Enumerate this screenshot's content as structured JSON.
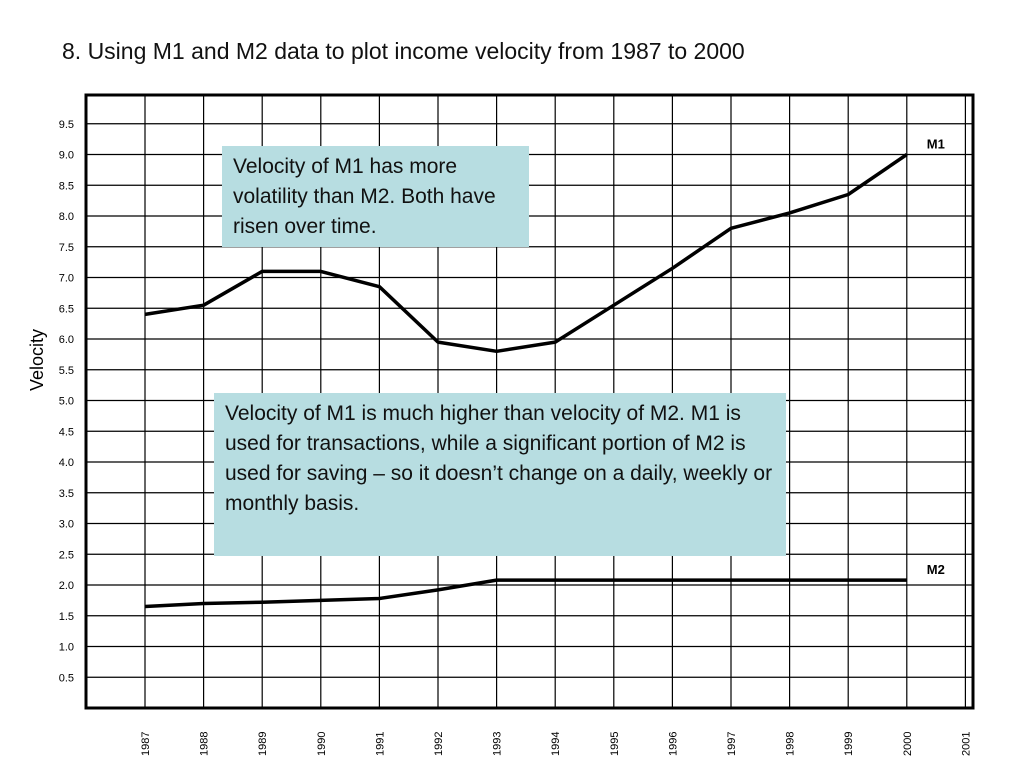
{
  "chart_data": {
    "type": "line",
    "title": "8. Using M1 and M2 data to plot income velocity from 1987 to 2000",
    "ylabel": "Velocity",
    "xlabel": "",
    "ylim": [
      0,
      10
    ],
    "y_ticks": [
      {
        "value": 9.5,
        "label": "9.5"
      },
      {
        "value": 9.0,
        "label": "9.0"
      },
      {
        "value": 8.5,
        "label": "8.5"
      },
      {
        "value": 8.0,
        "label": "8.0"
      },
      {
        "value": 7.5,
        "label": "7.5"
      },
      {
        "value": 7.0,
        "label": "7.0"
      },
      {
        "value": 6.5,
        "label": "6.5"
      },
      {
        "value": 6.0,
        "label": "6.0"
      },
      {
        "value": 5.5,
        "label": "5.5"
      },
      {
        "value": 5.0,
        "label": "5.0"
      },
      {
        "value": 4.5,
        "label": "4.5"
      },
      {
        "value": 4.0,
        "label": "4.0"
      },
      {
        "value": 3.5,
        "label": "3.5"
      },
      {
        "value": 3.0,
        "label": "3.0"
      },
      {
        "value": 2.5,
        "label": "2.5"
      },
      {
        "value": 2.0,
        "label": "2.0"
      },
      {
        "value": 1.5,
        "label": "1.5"
      },
      {
        "value": 1.0,
        "label": "1.0"
      },
      {
        "value": 0.5,
        "label": "0.5"
      }
    ],
    "x_ticks": [
      "1987",
      "1988",
      "1989",
      "1990",
      "1991",
      "1992",
      "1993",
      "1994",
      "1995",
      "1996",
      "1997",
      "1998",
      "1999",
      "2000",
      "2001"
    ],
    "grid": true,
    "series": [
      {
        "name": "M1",
        "x": [
          1987,
          1988,
          1989,
          1990,
          1991,
          1992,
          1993,
          1994,
          1995,
          1996,
          1997,
          1998,
          1999,
          2000
        ],
        "y": [
          6.4,
          6.55,
          7.1,
          7.1,
          6.85,
          5.95,
          5.8,
          5.95,
          6.55,
          7.15,
          7.8,
          8.05,
          8.35,
          9.0
        ]
      },
      {
        "name": "M2",
        "x": [
          1987,
          1988,
          1989,
          1990,
          1991,
          1992,
          1993,
          1994,
          1995,
          1996,
          1997,
          1998,
          1999,
          2000
        ],
        "y": [
          1.65,
          1.7,
          1.72,
          1.75,
          1.78,
          1.92,
          2.08,
          2.08,
          2.08,
          2.08,
          2.08,
          2.08,
          2.08,
          2.08
        ]
      }
    ],
    "annotations": [
      "Velocity of M1 has more volatility than M2. Both have risen over time.",
      "Velocity of M1 is much higher than velocity of M2.  M1 is used for transactions, while a significant portion of M2 is used for saving – so it doesn’t change on a daily, weekly or monthly basis."
    ],
    "colors": {
      "line": "#000000",
      "grid": "#000000",
      "note_background": "#b7dde1"
    }
  }
}
